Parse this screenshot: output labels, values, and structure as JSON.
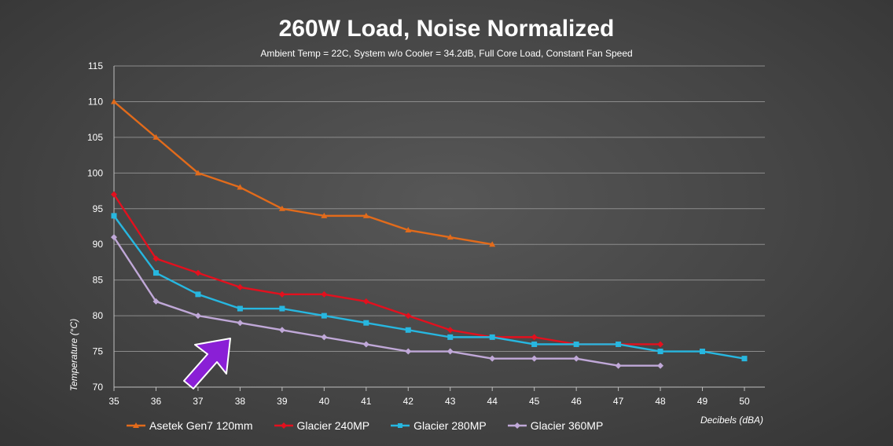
{
  "chart_data": {
    "type": "line",
    "title": "260W Load, Noise Normalized",
    "subtitle": "Ambient Temp = 22C, System w/o Cooler = 34.2dB, Full Core Load, Constant Fan Speed",
    "xlabel": "Decibels (dBA)",
    "ylabel": "Temperature (°C)",
    "xlim": [
      35,
      50
    ],
    "ylim": [
      70,
      115
    ],
    "x_ticks": [
      35,
      36,
      37,
      38,
      39,
      40,
      41,
      42,
      43,
      44,
      45,
      46,
      47,
      48,
      49,
      50
    ],
    "y_ticks": [
      70,
      75,
      80,
      85,
      90,
      95,
      100,
      105,
      110,
      115
    ],
    "grid": true,
    "legend_position": "bottom",
    "series": [
      {
        "name": "Asetek Gen7 120mm",
        "color": "#e26b1b",
        "marker": "triangle",
        "x": [
          35,
          36,
          37,
          38,
          39,
          40,
          41,
          42,
          43,
          44
        ],
        "y": [
          110,
          105,
          100,
          98,
          95,
          94,
          94,
          92,
          91,
          90
        ]
      },
      {
        "name": "Glacier 240MP",
        "color": "#e3101e",
        "marker": "diamond",
        "x": [
          35,
          36,
          37,
          38,
          39,
          40,
          41,
          42,
          43,
          44,
          45,
          46,
          47,
          48
        ],
        "y": [
          97,
          88,
          86,
          84,
          83,
          83,
          82,
          80,
          78,
          77,
          77,
          76,
          76,
          76
        ]
      },
      {
        "name": "Glacier 280MP",
        "color": "#27b7e0",
        "marker": "square",
        "x": [
          35,
          36,
          37,
          38,
          39,
          40,
          41,
          42,
          43,
          44,
          45,
          46,
          47,
          48,
          49,
          50
        ],
        "y": [
          94,
          86,
          83,
          81,
          81,
          80,
          79,
          78,
          77,
          77,
          76,
          76,
          76,
          75,
          75,
          74
        ]
      },
      {
        "name": "Glacier 360MP",
        "color": "#c0a8d8",
        "marker": "diamond",
        "x": [
          35,
          36,
          37,
          38,
          39,
          40,
          41,
          42,
          43,
          44,
          45,
          46,
          47,
          48
        ],
        "y": [
          91,
          82,
          80,
          79,
          78,
          77,
          76,
          75,
          75,
          74,
          74,
          74,
          73,
          73
        ]
      }
    ],
    "annotation": {
      "type": "arrow",
      "color": "#8a1fd6",
      "points_to": [
        38,
        79
      ]
    }
  }
}
